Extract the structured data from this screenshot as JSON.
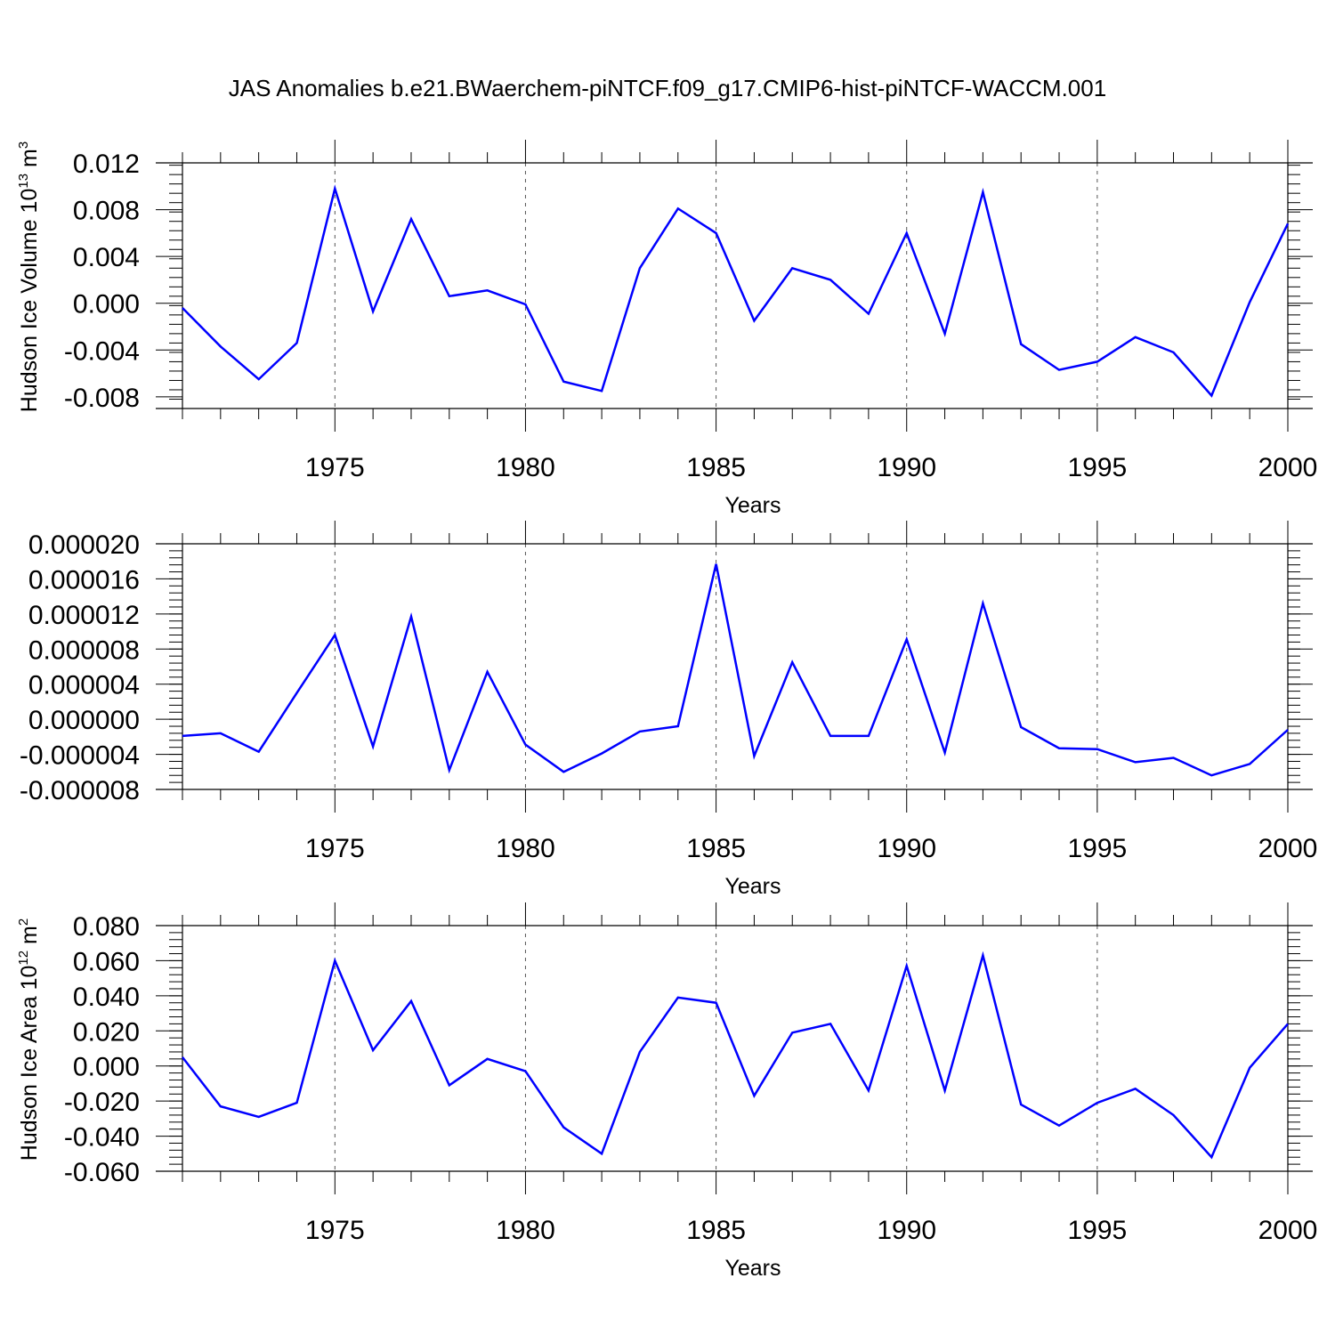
{
  "title": "JAS Anomalies b.e21.BWaerchem-piNTCF.f09_g17.CMIP6-hist-piNTCF-WACCM.001",
  "chart_data": [
    {
      "type": "line",
      "ylabel": "Hudson Ice Volume 10",
      "ylabel_exp": "13",
      "ylabel_unit": " m",
      "ylabel_unit_exp": "3",
      "xlabel": "Years",
      "xlim": [
        1971,
        2000
      ],
      "ylim": [
        -0.009,
        0.012
      ],
      "yticks": [
        -0.008,
        -0.004,
        0.0,
        0.004,
        0.008,
        0.012
      ],
      "ytick_labels": [
        "-0.008",
        "-0.004",
        "0.000",
        "0.004",
        "0.008",
        "0.012"
      ],
      "xticks": [
        1975,
        1980,
        1985,
        1990,
        1995,
        2000
      ],
      "xtick_labels": [
        "1975",
        "1980",
        "1985",
        "1990",
        "1995",
        "2000"
      ],
      "color": "#0000ff",
      "x": [
        1971,
        1972,
        1973,
        1974,
        1975,
        1976,
        1977,
        1978,
        1979,
        1980,
        1981,
        1982,
        1983,
        1984,
        1985,
        1986,
        1987,
        1988,
        1989,
        1990,
        1991,
        1992,
        1993,
        1994,
        1995,
        1996,
        1997,
        1998,
        1999,
        2000
      ],
      "y": [
        -0.0004,
        -0.0037,
        -0.0065,
        -0.0034,
        0.0098,
        -0.0007,
        0.0072,
        0.0006,
        0.0011,
        -0.0001,
        -0.0067,
        -0.0075,
        0.003,
        0.0081,
        0.006,
        -0.0015,
        0.003,
        0.002,
        -0.0009,
        0.006,
        -0.0026,
        0.0095,
        -0.0035,
        -0.0057,
        -0.005,
        -0.0029,
        -0.0042,
        -0.0079,
        0.0001,
        0.0068
      ]
    },
    {
      "type": "line",
      "ylabel": "",
      "xlabel": "Years",
      "xlim": [
        1971,
        2000
      ],
      "ylim": [
        -8e-06,
        2e-05
      ],
      "yticks": [
        -8e-06,
        -4e-06,
        0.0,
        4e-06,
        8e-06,
        1.2e-05,
        1.6e-05,
        2e-05
      ],
      "ytick_labels": [
        "-0.000008",
        "-0.000004",
        "0.000000",
        "0.000004",
        "0.000008",
        "0.000012",
        "0.000016",
        "0.000020"
      ],
      "xticks": [
        1975,
        1980,
        1985,
        1990,
        1995,
        2000
      ],
      "xtick_labels": [
        "1975",
        "1980",
        "1985",
        "1990",
        "1995",
        "2000"
      ],
      "color": "#0000ff",
      "x": [
        1971,
        1972,
        1973,
        1974,
        1975,
        1976,
        1977,
        1978,
        1979,
        1980,
        1981,
        1982,
        1983,
        1984,
        1985,
        1986,
        1987,
        1988,
        1989,
        1990,
        1991,
        1992,
        1993,
        1994,
        1995,
        1996,
        1997,
        1998,
        1999,
        2000
      ],
      "y": [
        -1.9e-06,
        -1.6e-06,
        -3.7e-06,
        3e-06,
        9.6e-06,
        -3.1e-06,
        1.17e-05,
        -5.8e-06,
        5.4e-06,
        -2.9e-06,
        -6e-06,
        -3.9e-06,
        -1.4e-06,
        -8e-07,
        1.77e-05,
        -4.2e-06,
        6.5e-06,
        -1.9e-06,
        -1.9e-06,
        9.1e-06,
        -3.8e-06,
        1.32e-05,
        -9e-07,
        -3.3e-06,
        -3.4e-06,
        -4.9e-06,
        -4.4e-06,
        -6.4e-06,
        -5.1e-06,
        -1.2e-06
      ]
    },
    {
      "type": "line",
      "ylabel": "Hudson Ice Area 10",
      "ylabel_exp": "12",
      "ylabel_unit": " m",
      "ylabel_unit_exp": "2",
      "xlabel": "Years",
      "xlim": [
        1971,
        2000
      ],
      "ylim": [
        -0.06,
        0.08
      ],
      "yticks": [
        -0.06,
        -0.04,
        -0.02,
        0.0,
        0.02,
        0.04,
        0.06,
        0.08
      ],
      "ytick_labels": [
        "-0.060",
        "-0.040",
        "-0.020",
        "0.000",
        "0.020",
        "0.040",
        "0.060",
        "0.080"
      ],
      "xticks": [
        1975,
        1980,
        1985,
        1990,
        1995,
        2000
      ],
      "xtick_labels": [
        "1975",
        "1980",
        "1985",
        "1990",
        "1995",
        "2000"
      ],
      "color": "#0000ff",
      "x": [
        1971,
        1972,
        1973,
        1974,
        1975,
        1976,
        1977,
        1978,
        1979,
        1980,
        1981,
        1982,
        1983,
        1984,
        1985,
        1986,
        1987,
        1988,
        1989,
        1990,
        1991,
        1992,
        1993,
        1994,
        1995,
        1996,
        1997,
        1998,
        1999,
        2000
      ],
      "y": [
        0.005,
        -0.023,
        -0.029,
        -0.021,
        0.06,
        0.009,
        0.037,
        -0.011,
        0.004,
        -0.003,
        -0.035,
        -0.05,
        0.008,
        0.039,
        0.036,
        -0.017,
        0.019,
        0.024,
        -0.014,
        0.057,
        -0.014,
        0.063,
        -0.022,
        -0.034,
        -0.021,
        -0.013,
        -0.028,
        -0.052,
        -0.001,
        0.024
      ]
    }
  ]
}
